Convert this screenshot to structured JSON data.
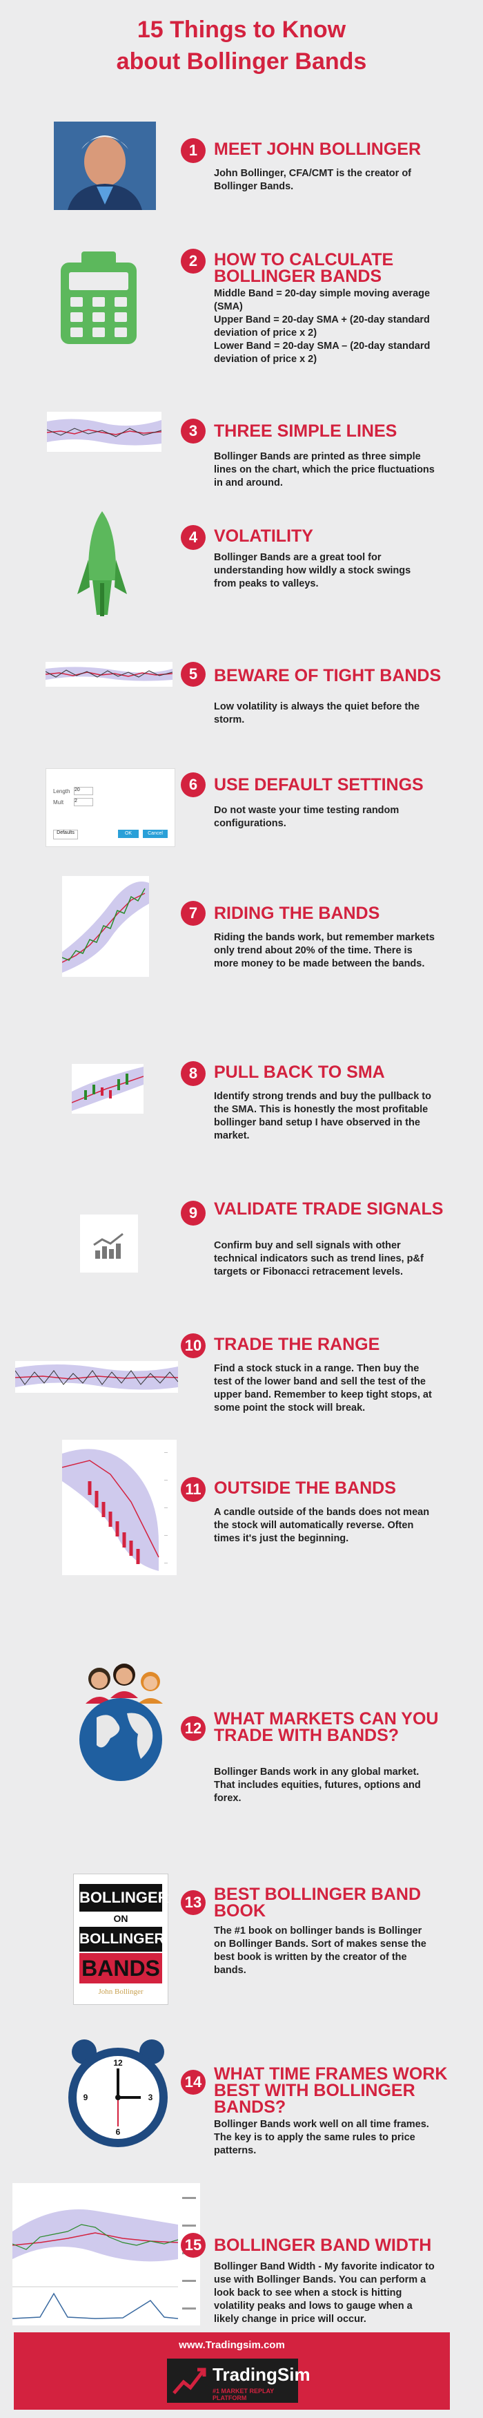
{
  "title": {
    "line1": "15 Things to Know",
    "line2": "about Bollinger Bands"
  },
  "items": [
    {
      "num": "1",
      "head": "MEET JOHN BOLLINGER",
      "body": "John Bollinger, CFA/CMT is the creator of Bollinger Bands."
    },
    {
      "num": "2",
      "head": "HOW TO CALCULATE BOLLINGER BANDS",
      "body": "Middle Band = 20-day simple moving average (SMA)\nUpper Band = 20-day SMA + (20-day standard deviation of price x 2)\nLower Band = 20-day SMA – (20-day standard deviation of price x 2)"
    },
    {
      "num": "3",
      "head": "THREE SIMPLE LINES",
      "body": "Bollinger Bands are printed as three simple lines on the chart, which the price fluctuations in and around."
    },
    {
      "num": "4",
      "head": "VOLATILITY",
      "body": "Bollinger Bands are a great tool for understanding how wildly a stock swings from peaks to valleys."
    },
    {
      "num": "5",
      "head": "BEWARE OF TIGHT BANDS",
      "body": "Low volatility is always the quiet before the storm."
    },
    {
      "num": "6",
      "head": "USE DEFAULT SETTINGS",
      "body": "Do not waste your time testing random configurations."
    },
    {
      "num": "7",
      "head": "RIDING THE BANDS",
      "body": "Riding the bands work, but remember markets only trend about 20% of the time. There is more money to be made between the bands."
    },
    {
      "num": "8",
      "head": "PULL BACK TO SMA",
      "body": "Identify strong trends and buy the pullback to the SMA. This is honestly the most profitable bollinger band setup I have observed in the market."
    },
    {
      "num": "9",
      "head": "VALIDATE TRADE SIGNALS",
      "body": "Confirm buy and sell signals with other technical indicators such as trend lines, p&f targets or Fibonacci retracement levels."
    },
    {
      "num": "10",
      "head": "TRADE THE RANGE",
      "body": "Find a stock stuck in a range. Then buy the test of the lower band and sell the test of the upper band. Remember to keep tight stops, at some point the stock will break."
    },
    {
      "num": "11",
      "head": "OUTSIDE THE BANDS",
      "body": "A candle outside of the bands does not mean the stock will automatically reverse. Often times it's just the beginning."
    },
    {
      "num": "12",
      "head": "WHAT MARKETS CAN YOU TRADE WITH BANDS?",
      "body": "Bollinger Bands work in any global market. That includes equities, futures, options and forex."
    },
    {
      "num": "13",
      "head": "BEST BOLLINGER BAND BOOK",
      "body": "The #1 book on bollinger bands is Bollinger on Bollinger Bands. Sort of makes sense the best book is written by the creator of the bands."
    },
    {
      "num": "14",
      "head": "WHAT TIME FRAMES WORK BEST WITH BOLLINGER BANDS?",
      "body": "Bollinger Bands work well on all time frames.  The key is to apply the same rules to price patterns."
    },
    {
      "num": "15",
      "head": "BOLLINGER BAND WIDTH",
      "body": "Bollinger Band Width - My favorite indicator to use with Bollinger Bands. You can perform a look back to see when a stock is hitting volatility peaks and lows to gauge when a likely change in price will occur."
    }
  ],
  "book": {
    "l1": "BOLLINGER",
    "l2": "ON",
    "l3": "BOLLINGER",
    "l4": "BANDS",
    "author": "John Bollinger"
  },
  "settings_dialog": {
    "label1": "Length",
    "val1": "20",
    "label2": "Mult",
    "val2": "2",
    "btn_ok": "OK",
    "btn_cancel": "Cancel",
    "defaults": "Defaults"
  },
  "footer": {
    "url": "www.Tradingsim.com",
    "brand": "TradingSim",
    "tagline": "#1 MARKET REPLAY PLATFORM"
  },
  "colors": {
    "accent": "#d3223f",
    "green": "#5cb85c",
    "band": "#c8c4ea"
  }
}
